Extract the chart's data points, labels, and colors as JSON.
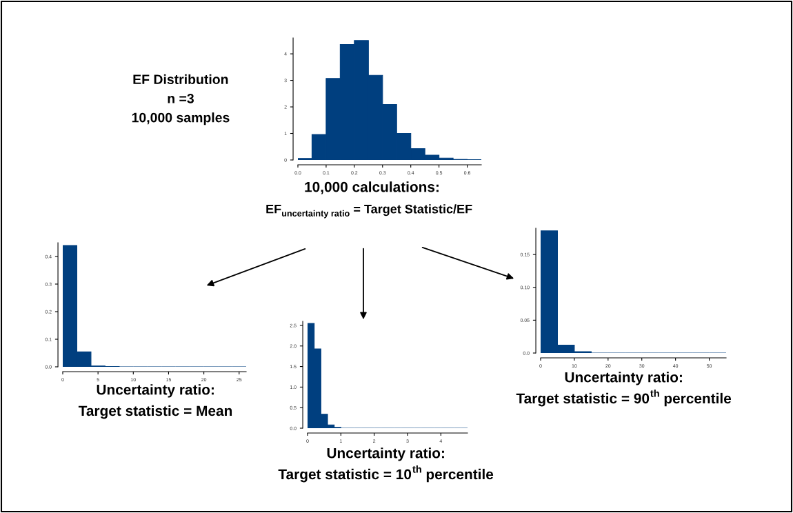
{
  "chart_data": [
    {
      "type": "histogram",
      "bins": [
        0,
        0.05,
        0.1,
        0.15,
        0.2,
        0.25,
        0.3,
        0.35,
        0.4,
        0.45,
        0.5,
        0.55,
        0.6,
        0.65
      ],
      "values": [
        0.06,
        0.96,
        3.07,
        4.35,
        4.5,
        3.19,
        2.09,
        1.0,
        0.43,
        0.18,
        0.07,
        0.02,
        0.01
      ],
      "color": "#003f7f",
      "xlim": [
        0,
        0.65
      ],
      "xticks": [
        {
          "value": 0,
          "label": "0.0"
        },
        0.1,
        0.2,
        0.3,
        0.4,
        0.5,
        0.6
      ],
      "ylim": [
        0,
        4.6
      ],
      "yticks": [
        0,
        1,
        2,
        3,
        4
      ],
      "annotations": [
        "EF Distribution\nn =3\n10,000 samples",
        "10,000 calculations:",
        "EF$_{uncertainty ratio}$ = Target Statistic/EF"
      ]
    },
    {
      "type": "histogram",
      "bins": [
        0,
        2,
        4,
        6,
        8,
        10,
        12,
        14,
        16,
        18,
        20,
        22,
        24,
        26
      ],
      "values": [
        0.44,
        0.054,
        0.003,
        0.001,
        0,
        0,
        0,
        0,
        0,
        0,
        0,
        0,
        0
      ],
      "color": "#003f7f",
      "xlim": [
        0,
        26
      ],
      "xticks": [
        0,
        5,
        10,
        15,
        20,
        25
      ],
      "ylim": [
        0,
        0.45
      ],
      "yticks": [
        {
          "value": 0,
          "label": "0.0"
        },
        0.1,
        0.2,
        0.3,
        0.4
      ],
      "xlabel": "Uncertainty ratio:\nTarget statistic = Mean"
    },
    {
      "type": "histogram",
      "bins": [
        0,
        0.2,
        0.4,
        0.6,
        0.8,
        1.0,
        1.2,
        1.4,
        1.6,
        1.8,
        2.0,
        2.2,
        2.4,
        2.6,
        2.8,
        3.0,
        3.2,
        3.4,
        3.6,
        3.8,
        4.0,
        4.2,
        4.4,
        4.6,
        4.8
      ],
      "values": [
        2.55,
        1.93,
        0.34,
        0.08,
        0.02,
        0,
        0,
        0,
        0,
        0,
        0,
        0,
        0,
        0,
        0,
        0,
        0,
        0,
        0,
        0,
        0,
        0,
        0,
        0
      ],
      "color": "#003f7f",
      "xlim": [
        0,
        4.8
      ],
      "xticks": [
        0,
        1,
        2,
        3,
        4
      ],
      "ylim": [
        0,
        2.6
      ],
      "yticks": [
        {
          "value": 0,
          "label": "0.0"
        },
        0.5,
        {
          "value": 1,
          "label": "1.0"
        },
        1.5,
        {
          "value": 2,
          "label": "2.0"
        },
        2.5
      ],
      "xlabel": "Uncertainty ratio:\nTarget statistic = 10$^{th}$ percentile"
    },
    {
      "type": "histogram",
      "bins": [
        0,
        5,
        10,
        15,
        20,
        25,
        30,
        35,
        40,
        45,
        50,
        55
      ],
      "values": [
        0.186,
        0.012,
        0.002,
        0,
        0,
        0,
        0,
        0,
        0,
        0,
        0
      ],
      "color": "#003f7f",
      "xlim": [
        0,
        55
      ],
      "xticks": [
        0,
        10,
        20,
        30,
        40,
        50
      ],
      "ylim": [
        0,
        0.19
      ],
      "yticks": [
        {
          "value": 0,
          "label": "0.0"
        },
        0.05,
        {
          "value": 0.1,
          "label": "0.10"
        },
        0.15
      ],
      "xlabel": "Uncertainty ratio:\nTarget statistic = 90$^{th}$ percentile"
    }
  ]
}
